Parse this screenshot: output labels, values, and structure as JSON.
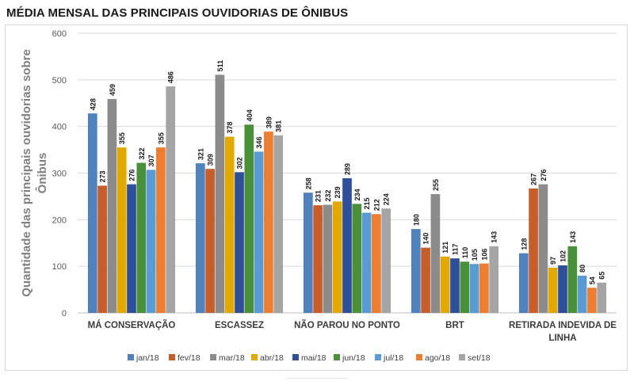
{
  "title": "MÉDIA MENSAL DAS PRINCIPAIS OUVIDORIAS DE ÔNIBUS",
  "chart_data": {
    "type": "bar",
    "title": "MÉDIA MENSAL DAS PRINCIPAIS OUVIDORIAS DE ÔNIBUS",
    "ylabel_lines": [
      "Quantidade das principais ouvidorias sobre",
      "Ônibus"
    ],
    "xlabel": "",
    "ylim": [
      0,
      600
    ],
    "yticks": [
      0,
      100,
      200,
      300,
      400,
      500,
      600
    ],
    "grid": true,
    "legend_position": "bottom",
    "categories": [
      [
        "MÁ CONSERVAÇÃO"
      ],
      [
        "ESCASSEZ"
      ],
      [
        "NÃO PAROU NO PONTO"
      ],
      [
        "BRT"
      ],
      [
        "RETIRADA INDEVIDA DE",
        "LINHA"
      ]
    ],
    "series": [
      {
        "name": "jan/18",
        "color": "#4f81bd",
        "values": [
          428,
          321,
          258,
          180,
          128
        ]
      },
      {
        "name": "fev/18",
        "color": "#c65e2b",
        "values": [
          273,
          309,
          231,
          140,
          267
        ]
      },
      {
        "name": "mar/18",
        "color": "#8c8c8c",
        "values": [
          459,
          511,
          232,
          255,
          276
        ]
      },
      {
        "name": "abr/18",
        "color": "#e0a800",
        "values": [
          355,
          378,
          239,
          121,
          97
        ]
      },
      {
        "name": "mai/18",
        "color": "#2f4f99",
        "values": [
          276,
          302,
          289,
          117,
          102
        ]
      },
      {
        "name": "jun/18",
        "color": "#4a8f3a",
        "values": [
          322,
          404,
          234,
          110,
          143
        ]
      },
      {
        "name": "jul/18",
        "color": "#5b9bd5",
        "values": [
          307,
          346,
          215,
          105,
          80
        ]
      },
      {
        "name": "ago/18",
        "color": "#ed7d31",
        "values": [
          355,
          389,
          212,
          106,
          54
        ]
      },
      {
        "name": "set/18",
        "color": "#a5a5a5",
        "values": [
          486,
          381,
          224,
          143,
          65
        ]
      }
    ]
  }
}
